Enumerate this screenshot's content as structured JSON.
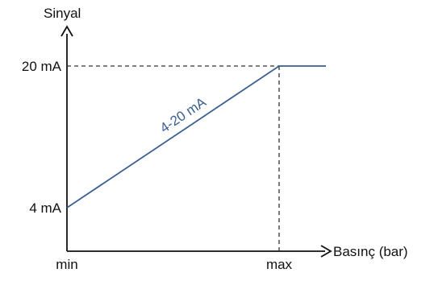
{
  "chart_data": {
    "type": "line",
    "ylabel": "Sinyal",
    "xlabel": "Basınç (bar)",
    "x_ticks": [
      "min",
      "max"
    ],
    "y_ticks": [
      "4 mA",
      "20 mA"
    ],
    "y_tick_values": [
      4,
      20
    ],
    "series": [
      {
        "name": "4-20 mA",
        "points": [
          {
            "x": "min",
            "y": 4
          },
          {
            "x": "max",
            "y": 20
          },
          {
            "x": "beyond max",
            "y": 20
          }
        ],
        "color": "#3a5f91"
      }
    ],
    "reference_lines": [
      {
        "from": "y-axis",
        "y": 20,
        "to_x": "max",
        "style": "dashed"
      },
      {
        "x": "max",
        "from_y": 20,
        "to": "x-axis",
        "style": "dashed"
      }
    ],
    "grid": false,
    "legend": "none",
    "colors": {
      "axis": "#111111",
      "series": "#3a5f91",
      "reference": "#333333"
    }
  }
}
